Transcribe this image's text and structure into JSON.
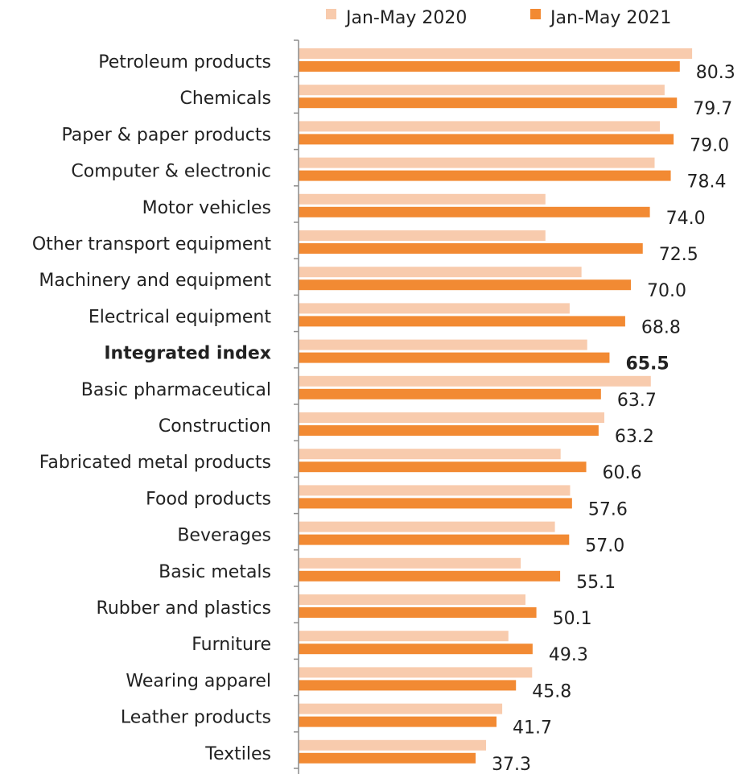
{
  "chart_data": {
    "type": "bar",
    "orientation": "horizontal",
    "title": "",
    "xlabel": "",
    "ylabel": "",
    "xlim": [
      0,
      90
    ],
    "grid": false,
    "legend_position": "top",
    "categories": [
      "Petroleum products",
      "Chemicals",
      "Paper & paper products",
      "Computer & electronic",
      "Motor vehicles",
      "Other transport equipment",
      "Machinery and equipment",
      "Electrical equipment",
      "Integrated index",
      "Basic pharmaceutical",
      "Construction",
      "Fabricated metal products",
      "Food products",
      "Beverages",
      "Basic metals",
      "Rubber and plastics",
      "Furniture",
      "Wearing apparel",
      "Leather products",
      "Textiles"
    ],
    "highlight_category": "Integrated index",
    "series": [
      {
        "name": "Jan-May 2020",
        "color": "#F8CBAD",
        "values": [
          82.9,
          77.1,
          76.1,
          75.0,
          52.0,
          52.0,
          59.6,
          57.1,
          60.8,
          74.2,
          64.4,
          55.2,
          57.2,
          54.0,
          46.8,
          47.8,
          44.2,
          49.2,
          42.9,
          39.5
        ]
      },
      {
        "name": "Jan-May 2021",
        "color": "#F28A33",
        "values": [
          80.3,
          79.7,
          79.0,
          78.4,
          74.0,
          72.5,
          70.0,
          68.8,
          65.5,
          63.7,
          63.2,
          60.6,
          57.6,
          57.0,
          55.1,
          50.1,
          49.3,
          45.8,
          41.7,
          37.3
        ],
        "data_labels": [
          "80.3",
          "79.7",
          "79.0",
          "78.4",
          "74.0",
          "72.5",
          "70.0",
          "68.8",
          "65.5",
          "63.7",
          "63.2",
          "60.6",
          "57.6",
          "57.0",
          "55.1",
          "50.1",
          "49.3",
          "45.8",
          "41.7",
          "37.3"
        ]
      }
    ]
  }
}
